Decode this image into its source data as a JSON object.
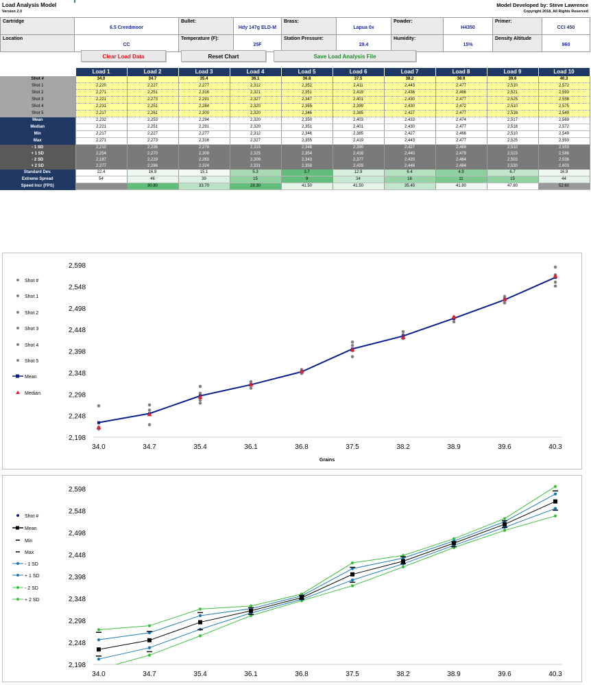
{
  "header": {
    "title": "Load Analysis Model",
    "version": "Version 2.0",
    "developer": "Model Developed by: Steve Lawrence",
    "copyright": "Copyright 2018, All Rights Reserved"
  },
  "info": {
    "row1": [
      {
        "label": "Cartridge",
        "value": "6.5 Creedmoor"
      },
      {
        "label": "Bullet:",
        "value": "Hdy 147g ELD-M"
      },
      {
        "label": "Brass:",
        "value": "Lapua 0x"
      },
      {
        "label": "Powder:",
        "value": "H4350"
      },
      {
        "label": "Primer:",
        "value": "CCI 450"
      }
    ],
    "row2": [
      {
        "label": "Location",
        "value": "CC"
      },
      {
        "label": "Temperature (F):",
        "value": "25F"
      },
      {
        "label": "Station Pressure:",
        "value": "29.4"
      },
      {
        "label": "Humidity:",
        "value": "15%"
      },
      {
        "label": "Density Altitude",
        "value": "960"
      }
    ]
  },
  "buttons": {
    "clear": "Clear Load Data",
    "reset": "Reset Chart",
    "save": "Save Load Analysis File"
  },
  "colors": {
    "navy": "#1f3864",
    "yellow": "#ffff99",
    "mean_line": "#0a1e8c",
    "median_marker": "#e0202a",
    "shot_marker": "#7f7f7f",
    "sd1_line": "#1b78b8",
    "sd2_line": "#3cbf3c",
    "green_dark": "#63be7b",
    "green_light": "#d8f0de"
  },
  "table": {
    "loads": [
      "Load 1",
      "Load 2",
      "Load 3",
      "Load 4",
      "Load 5",
      "Load 6",
      "Load 7",
      "Load 8",
      "Load 9",
      "Load 10"
    ],
    "shot_label": "Shot #",
    "charges": [
      "34.0",
      "34.7",
      "35.4",
      "36.1",
      "36.8",
      "37.5",
      "38.2",
      "38.9",
      "39.6",
      "40.3"
    ],
    "shot_rows": [
      {
        "label": "Shot 1",
        "values": [
          "2,220",
          "2,227",
          "2,277",
          "2,312",
          "2,352",
          "2,411",
          "2,443",
          "2,477",
          "2,510",
          "2,572"
        ]
      },
      {
        "label": "Shot 2",
        "values": [
          "2,271",
          "2,251",
          "2,316",
          "2,321",
          "2,351",
          "2,419",
          "2,436",
          "2,466",
          "2,521",
          "2,593"
        ]
      },
      {
        "label": "Shot 3",
        "values": [
          "2,221",
          "2,273",
          "2,291",
          "2,327",
          "2,347",
          "2,401",
          "2,430",
          "2,477",
          "2,525",
          "2,558"
        ]
      },
      {
        "label": "Shot 4",
        "values": [
          "2,231",
          "2,251",
          "2,284",
          "2,320",
          "2,355",
          "2,399",
          "2,430",
          "2,472",
          "2,510",
          "2,575"
        ]
      },
      {
        "label": "Shot 5",
        "values": [
          "2,217",
          "2,261",
          "2,300",
          "2,320",
          "2,346",
          "2,385",
          "2,427",
          "2,477",
          "2,518",
          "2,549"
        ]
      }
    ],
    "stat_rows": [
      {
        "label": "Mean",
        "values": [
          "2,232",
          "2,253",
          "2,294",
          "2,320",
          "2,350",
          "2,403",
          "2,433",
          "2,474",
          "2,517",
          "2,569"
        ]
      },
      {
        "label": "Median",
        "values": [
          "2,221",
          "2,251",
          "2,291",
          "2,320",
          "2,351",
          "2,401",
          "2,430",
          "2,477",
          "2,518",
          "2,572"
        ]
      },
      {
        "label": "Min",
        "values": [
          "2,217",
          "2,227",
          "2,277",
          "2,312",
          "2,346",
          "2,385",
          "2,427",
          "2,466",
          "2,510",
          "2,549"
        ]
      },
      {
        "label": "Max",
        "values": [
          "2,271",
          "2,273",
          "2,316",
          "2,327",
          "2,355",
          "2,419",
          "2,443",
          "2,477",
          "2,525",
          "2,593"
        ]
      }
    ],
    "sd_rows": [
      {
        "label": "- 1 SD",
        "values": [
          "2,210",
          "2,236",
          "2,278",
          "2,315",
          "2,346",
          "2,390",
          "2,427",
          "2,469",
          "2,510",
          "2,553"
        ]
      },
      {
        "label": "+ 1 SD",
        "values": [
          "2,254",
          "2,270",
          "2,309",
          "2,325",
          "2,354",
          "2,416",
          "2,440",
          "2,479",
          "2,523",
          "2,586"
        ]
      },
      {
        "label": "- 2 SD",
        "values": [
          "2,187",
          "2,219",
          "2,263",
          "2,309",
          "2,343",
          "2,377",
          "2,420",
          "2,464",
          "2,503",
          "2,536"
        ]
      },
      {
        "label": "+ 2 SD",
        "values": [
          "2,277",
          "2,286",
          "2,324",
          "2,331",
          "2,358",
          "2,429",
          "2,446",
          "2,484",
          "2,530",
          "2,603"
        ]
      }
    ],
    "std_dev": {
      "label": "Standard Dev.",
      "values": [
        "22.4",
        "16.9",
        "15.1",
        "5.3",
        "3.7",
        "12.9",
        "6.4",
        "4.9",
        "6.7",
        "16.9"
      ],
      "shades": [
        "#ffffff",
        "#eef8f0",
        "#f3faf4",
        "#a9dcb4",
        "#63be7b",
        "#d5efdb",
        "#b6e1c0",
        "#8ed1a0",
        "#c3e6cb",
        "#eef8f0"
      ]
    },
    "extreme_spread": {
      "label": "Extreme Spread",
      "values": [
        "54",
        "46",
        "39",
        "15",
        "9",
        "34",
        "16",
        "11",
        "15",
        "44"
      ],
      "shades": [
        "#ffffff",
        "#e9f6ec",
        "#dcf1e1",
        "#90d1a1",
        "#63be7b",
        "#c9ead1",
        "#96d4a7",
        "#7bc98f",
        "#90d1a1",
        "#e3f3e7"
      ]
    },
    "speed_incr": {
      "label": "Speed Incr (FPS)",
      "values": [
        "",
        "30.80",
        "33.70",
        "28.30",
        "41.50",
        "41.50",
        "35.40",
        "41.80",
        "47.80",
        "52.60"
      ],
      "shades": [
        "#8c8c8c",
        "#63be7b",
        "#b9e2c4",
        "#63be7b",
        "#e6f5ea",
        "#e6f5ea",
        "#c2e6cb",
        "#eef8f1",
        "#ffffff",
        "#9a9a9a"
      ]
    }
  },
  "chart_data": [
    {
      "type": "scatter",
      "title": "",
      "xlabel": "Grains",
      "ylabel": "",
      "categories": [
        "34.0",
        "34.7",
        "35.4",
        "36.1",
        "36.8",
        "37.5",
        "38.2",
        "38.9",
        "39.6",
        "40.3"
      ],
      "yticks": [
        "2,598",
        "2,548",
        "2,498",
        "2,448",
        "2,398",
        "2,348",
        "2,298",
        "2,248",
        "2,198"
      ],
      "ylim": [
        2198,
        2598
      ],
      "legend_position": "left",
      "legend": [
        "Shot #",
        "Shot 1",
        "Shot 2",
        "Shot 3",
        "Shot 4",
        "Shot 5",
        "Mean",
        "Median"
      ],
      "series": [
        {
          "name": "Shot 1",
          "values": [
            2220,
            2227,
            2277,
            2312,
            2352,
            2411,
            2443,
            2477,
            2510,
            2572
          ]
        },
        {
          "name": "Shot 2",
          "values": [
            2271,
            2251,
            2316,
            2321,
            2351,
            2419,
            2436,
            2466,
            2521,
            2593
          ]
        },
        {
          "name": "Shot 3",
          "values": [
            2221,
            2273,
            2291,
            2327,
            2347,
            2401,
            2430,
            2477,
            2525,
            2558
          ]
        },
        {
          "name": "Shot 4",
          "values": [
            2231,
            2251,
            2284,
            2320,
            2355,
            2399,
            2430,
            2472,
            2510,
            2575
          ]
        },
        {
          "name": "Shot 5",
          "values": [
            2217,
            2261,
            2300,
            2320,
            2346,
            2385,
            2427,
            2477,
            2518,
            2549
          ]
        },
        {
          "name": "Mean",
          "values": [
            2232,
            2253,
            2294,
            2320,
            2350,
            2403,
            2433,
            2474,
            2517,
            2569
          ]
        },
        {
          "name": "Median",
          "values": [
            2221,
            2251,
            2291,
            2320,
            2351,
            2401,
            2430,
            2477,
            2518,
            2572
          ]
        }
      ]
    },
    {
      "type": "line",
      "title": "",
      "xlabel": "",
      "ylabel": "",
      "categories": [
        "34.0",
        "34.7",
        "35.4",
        "36.1",
        "36.8",
        "37.5",
        "38.2",
        "38.9",
        "39.6",
        "40.3"
      ],
      "yticks": [
        "2,598",
        "2,548",
        "2,498",
        "2,448",
        "2,398",
        "2,348",
        "2,298",
        "2,248",
        "2,198"
      ],
      "ylim": [
        2198,
        2598
      ],
      "legend_position": "left",
      "legend": [
        "Shot #",
        "Mean",
        "Min",
        "Max",
        "- 1 SD",
        "+ 1 SD",
        "- 2 SD",
        "+ 2 SD"
      ],
      "series": [
        {
          "name": "Mean",
          "values": [
            2232,
            2253,
            2294,
            2320,
            2350,
            2403,
            2433,
            2474,
            2517,
            2569
          ]
        },
        {
          "name": "Min",
          "values": [
            2217,
            2227,
            2277,
            2312,
            2346,
            2385,
            2427,
            2466,
            2510,
            2549
          ]
        },
        {
          "name": "Max",
          "values": [
            2271,
            2273,
            2316,
            2327,
            2355,
            2419,
            2443,
            2477,
            2525,
            2593
          ]
        },
        {
          "name": "- 1 SD",
          "values": [
            2210,
            2236,
            2278,
            2315,
            2346,
            2390,
            2427,
            2469,
            2510,
            2553
          ]
        },
        {
          "name": "+ 1 SD",
          "values": [
            2254,
            2270,
            2309,
            2325,
            2354,
            2416,
            2440,
            2479,
            2523,
            2586
          ]
        },
        {
          "name": "- 2 SD",
          "values": [
            2187,
            2219,
            2263,
            2309,
            2343,
            2377,
            2420,
            2464,
            2503,
            2536
          ]
        },
        {
          "name": "+ 2 SD",
          "values": [
            2277,
            2286,
            2324,
            2331,
            2358,
            2429,
            2446,
            2484,
            2530,
            2603
          ]
        }
      ]
    }
  ]
}
